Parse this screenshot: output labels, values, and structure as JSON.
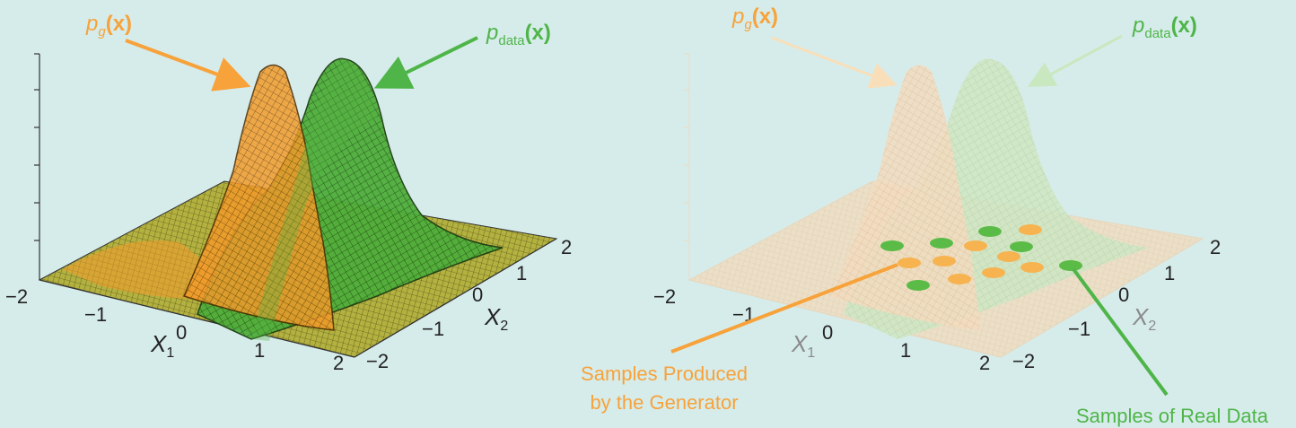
{
  "colors": {
    "generator": "#f7a23a",
    "data": "#4fb548",
    "background": "#d6eceb",
    "floor": "#b9b548"
  },
  "left": {
    "pg_label": {
      "p": "p",
      "sub": "g",
      "x": "(x)"
    },
    "pdata_label": {
      "p": "p",
      "sub": "data",
      "x": "(x)"
    },
    "x1_ticks": [
      "−2",
      "−1",
      "0",
      "1",
      "2"
    ],
    "x2_ticks": [
      "−2",
      "−1",
      "0",
      "1",
      "2"
    ],
    "x1_label": {
      "main": "X",
      "sub": "1"
    },
    "x2_label": {
      "main": "X",
      "sub": "2"
    }
  },
  "right": {
    "pg_label": {
      "p": "p",
      "sub": "g",
      "x": "(x)"
    },
    "pdata_label": {
      "p": "p",
      "sub": "data",
      "x": "(x)"
    },
    "x1_ticks": [
      "−2",
      "−1",
      "0",
      "1",
      "2"
    ],
    "x2_ticks": [
      "−2",
      "−1",
      "0",
      "1",
      "2"
    ],
    "x1_label": {
      "main": "X",
      "sub": "1"
    },
    "x2_label": {
      "main": "X",
      "sub": "2"
    },
    "generator_callout": [
      "Samples Produced",
      "by the Generator"
    ],
    "real_callout": "Samples of Real Data"
  }
}
